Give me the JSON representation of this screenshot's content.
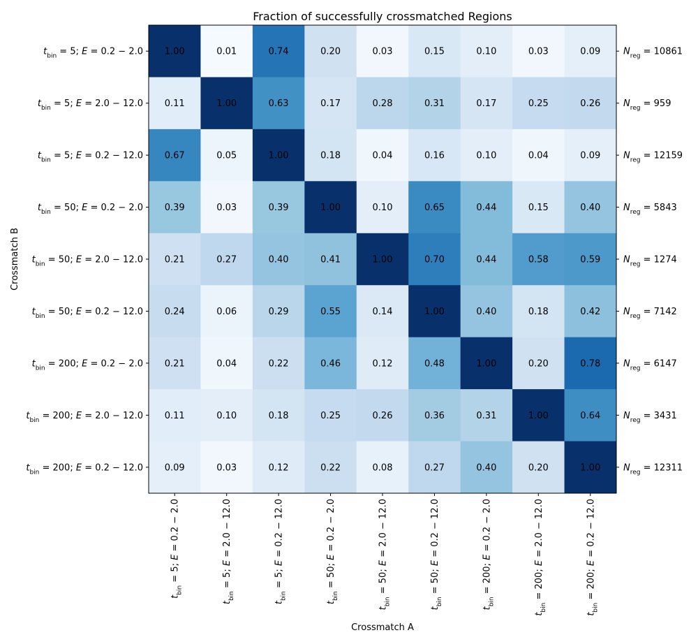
{
  "chart_data": {
    "type": "heatmap",
    "title": "Fraction of successfully crossmatched Regions",
    "xlabel": "Crossmatch A",
    "ylabel": "Crossmatch B",
    "colormap": "Blues",
    "value_range": [
      0,
      1
    ],
    "categories": [
      {
        "tbin": "5",
        "E": "0.2 − 2.0"
      },
      {
        "tbin": "5",
        "E": "2.0 − 12.0"
      },
      {
        "tbin": "5",
        "E": "0.2 − 12.0"
      },
      {
        "tbin": "50",
        "E": "0.2 − 2.0"
      },
      {
        "tbin": "50",
        "E": "2.0 − 12.0"
      },
      {
        "tbin": "50",
        "E": "0.2 − 12.0"
      },
      {
        "tbin": "200",
        "E": "0.2 − 2.0"
      },
      {
        "tbin": "200",
        "E": "2.0 − 12.0"
      },
      {
        "tbin": "200",
        "E": "0.2 − 12.0"
      }
    ],
    "values": [
      [
        1.0,
        0.01,
        0.74,
        0.2,
        0.03,
        0.15,
        0.1,
        0.03,
        0.09
      ],
      [
        0.11,
        1.0,
        0.63,
        0.17,
        0.28,
        0.31,
        0.17,
        0.25,
        0.26
      ],
      [
        0.67,
        0.05,
        1.0,
        0.18,
        0.04,
        0.16,
        0.1,
        0.04,
        0.09
      ],
      [
        0.39,
        0.03,
        0.39,
        1.0,
        0.1,
        0.65,
        0.44,
        0.15,
        0.4
      ],
      [
        0.21,
        0.27,
        0.4,
        0.41,
        1.0,
        0.7,
        0.44,
        0.58,
        0.59
      ],
      [
        0.24,
        0.06,
        0.29,
        0.55,
        0.14,
        1.0,
        0.4,
        0.18,
        0.42
      ],
      [
        0.21,
        0.04,
        0.22,
        0.46,
        0.12,
        0.48,
        1.0,
        0.2,
        0.78
      ],
      [
        0.11,
        0.1,
        0.18,
        0.25,
        0.26,
        0.36,
        0.31,
        1.0,
        0.64
      ],
      [
        0.09,
        0.03,
        0.12,
        0.22,
        0.08,
        0.27,
        0.4,
        0.2,
        1.0
      ]
    ],
    "row_counts": [
      "10861",
      "959",
      "12159",
      "5843",
      "1274",
      "7142",
      "6147",
      "3431",
      "12311"
    ]
  }
}
